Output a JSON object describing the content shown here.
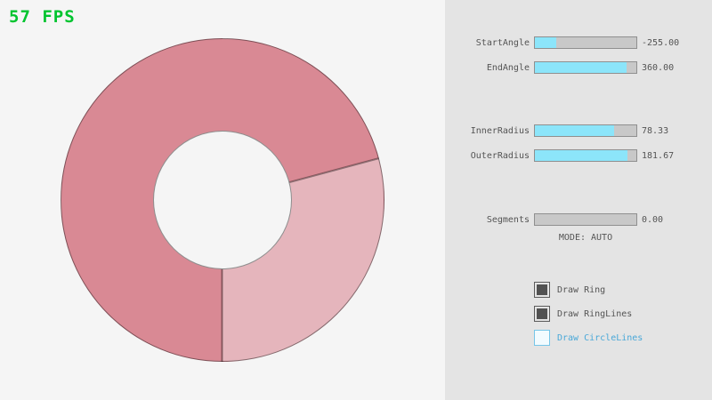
{
  "fps": "57 FPS",
  "ring": {
    "dark_color": "#d98994",
    "light_color": "#e5b5bc",
    "outline_color": "rgba(0,0,0,0.42)",
    "light_sector_start_deg": 75,
    "light_sector_end_deg": 180,
    "outer_radius": 182,
    "inner_radius": 78
  },
  "panel": {
    "sliders": [
      {
        "label": "StartAngle",
        "value": "-255.00",
        "fill_pct": 21
      },
      {
        "label": "EndAngle",
        "value": "360.00",
        "fill_pct": 90
      },
      {
        "label": "InnerRadius",
        "value": "78.33",
        "fill_pct": 78
      },
      {
        "label": "OuterRadius",
        "value": "181.67",
        "fill_pct": 91
      },
      {
        "label": "Segments",
        "value": "0.00",
        "fill_pct": 0
      }
    ],
    "mode_text": "MODE: AUTO",
    "checkboxes": [
      {
        "label": "Draw Ring",
        "checked": true
      },
      {
        "label": "Draw RingLines",
        "checked": true
      },
      {
        "label": "Draw CircleLines",
        "checked": false
      }
    ]
  },
  "colors": {
    "fps_green": "#00c42f",
    "slider_fill_cyan": "#8ce5fa",
    "slider_track_gray": "#c8c8c8",
    "slider_border_gray": "#8f8f8f",
    "label_text_gray": "#545454",
    "checkbox_checked_fill": "#515151",
    "focused_text_blue": "#4aa8d8",
    "focused_border_blue": "#77c6e8",
    "canvas_bg": "#f5f5f5",
    "panel_bg": "#e4e4e4"
  }
}
